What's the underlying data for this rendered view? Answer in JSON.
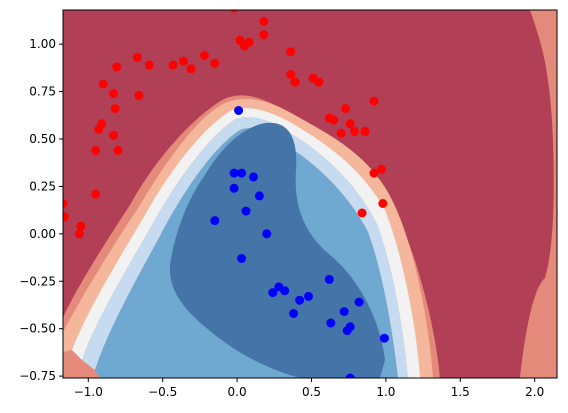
{
  "chart_data": {
    "type": "scatter",
    "title": "",
    "xlabel": "",
    "ylabel": "",
    "xlim": [
      -1.17,
      2.15
    ],
    "ylim": [
      -0.76,
      1.18
    ],
    "xticks": [
      -1.0,
      -0.5,
      0.0,
      0.5,
      1.0,
      1.5,
      2.0
    ],
    "yticks": [
      -0.75,
      -0.5,
      -0.25,
      0.0,
      0.25,
      0.5,
      0.75,
      1.0
    ],
    "xtick_labels": [
      "−1.0",
      "−0.5",
      "0.0",
      "0.5",
      "1.0",
      "1.5",
      "2.0"
    ],
    "ytick_labels": [
      "−0.75",
      "−0.50",
      "−0.25",
      "0.00",
      "0.25",
      "0.50",
      "0.75",
      "1.00"
    ],
    "grid": false,
    "legend": false,
    "background": "decision-boundary filled contours (RdBu colormap)",
    "series": [
      {
        "color": "#ff0000",
        "points": [
          [
            -1.17,
            0.16
          ],
          [
            -1.16,
            0.09
          ],
          [
            -1.05,
            0.04
          ],
          [
            -1.06,
            0.0
          ],
          [
            -0.95,
            0.21
          ],
          [
            -0.95,
            0.44
          ],
          [
            -0.93,
            0.55
          ],
          [
            -0.91,
            0.58
          ],
          [
            -0.83,
            0.52
          ],
          [
            -0.9,
            0.79
          ],
          [
            -0.83,
            0.74
          ],
          [
            -0.82,
            0.66
          ],
          [
            -0.81,
            0.88
          ],
          [
            -0.8,
            0.44
          ],
          [
            -0.67,
            0.93
          ],
          [
            -0.66,
            0.73
          ],
          [
            -0.59,
            0.89
          ],
          [
            -0.43,
            0.89
          ],
          [
            -0.36,
            0.91
          ],
          [
            -0.31,
            0.87
          ],
          [
            -0.22,
            0.94
          ],
          [
            -0.15,
            0.9
          ],
          [
            -0.02,
            1.19
          ],
          [
            0.02,
            1.02
          ],
          [
            0.05,
            0.99
          ],
          [
            0.08,
            1.01
          ],
          [
            0.18,
            1.05
          ],
          [
            0.18,
            1.12
          ],
          [
            0.36,
            0.96
          ],
          [
            0.36,
            0.84
          ],
          [
            0.39,
            0.8
          ],
          [
            0.51,
            0.82
          ],
          [
            0.55,
            0.8
          ],
          [
            0.62,
            0.61
          ],
          [
            0.65,
            0.6
          ],
          [
            0.7,
            0.53
          ],
          [
            0.73,
            0.66
          ],
          [
            0.76,
            0.58
          ],
          [
            0.79,
            0.54
          ],
          [
            0.86,
            0.54
          ],
          [
            0.92,
            0.7
          ],
          [
            0.92,
            0.32
          ],
          [
            0.97,
            0.34
          ],
          [
            0.98,
            0.16
          ],
          [
            0.84,
            0.11
          ]
        ]
      },
      {
        "color": "#0000ff",
        "points": [
          [
            0.01,
            0.65
          ],
          [
            -0.02,
            0.32
          ],
          [
            0.03,
            0.32
          ],
          [
            -0.02,
            0.24
          ],
          [
            0.11,
            0.3
          ],
          [
            0.15,
            0.2
          ],
          [
            0.06,
            0.12
          ],
          [
            -0.15,
            0.07
          ],
          [
            0.2,
            0.0
          ],
          [
            0.03,
            -0.13
          ],
          [
            0.24,
            -0.31
          ],
          [
            0.28,
            -0.28
          ],
          [
            0.32,
            -0.3
          ],
          [
            0.38,
            -0.42
          ],
          [
            0.42,
            -0.35
          ],
          [
            0.48,
            -0.33
          ],
          [
            0.62,
            -0.24
          ],
          [
            0.63,
            -0.47
          ],
          [
            0.72,
            -0.41
          ],
          [
            0.74,
            -0.51
          ],
          [
            0.76,
            -0.49
          ],
          [
            0.82,
            -0.36
          ],
          [
            0.99,
            -0.55
          ],
          [
            0.76,
            -0.76
          ]
        ]
      }
    ]
  }
}
